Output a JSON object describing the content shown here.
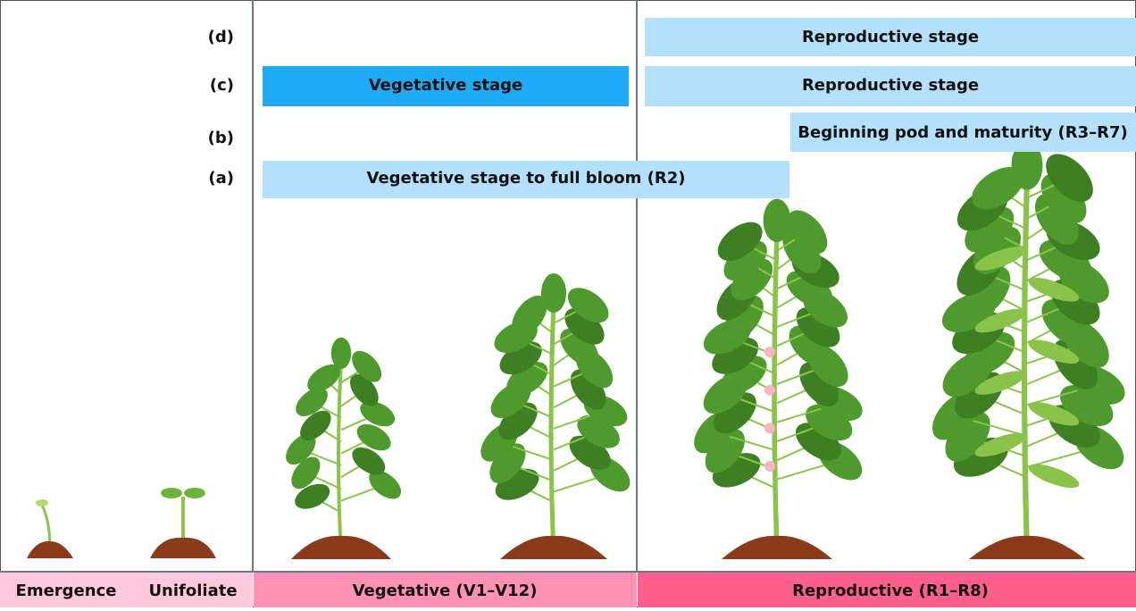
{
  "rows": [
    {
      "label": "(d)",
      "bars": [
        {
          "text": "Reproductive stage"
        }
      ]
    },
    {
      "label": "(c)",
      "bars": [
        {
          "text": "Vegetative stage"
        },
        {
          "text": "Reproductive stage"
        }
      ]
    },
    {
      "label": "(b)",
      "bars": [
        {
          "text": "Beginning pod and maturity (R3–R7)"
        }
      ]
    },
    {
      "label": "(a)",
      "bars": [
        {
          "text": "Vegetative stage to full bloom (R2)"
        }
      ]
    }
  ],
  "stages": [
    "Emergence",
    "Unifoliate",
    "Vegetative (V1–V12)",
    "Reproductive (R1–R8)"
  ]
}
